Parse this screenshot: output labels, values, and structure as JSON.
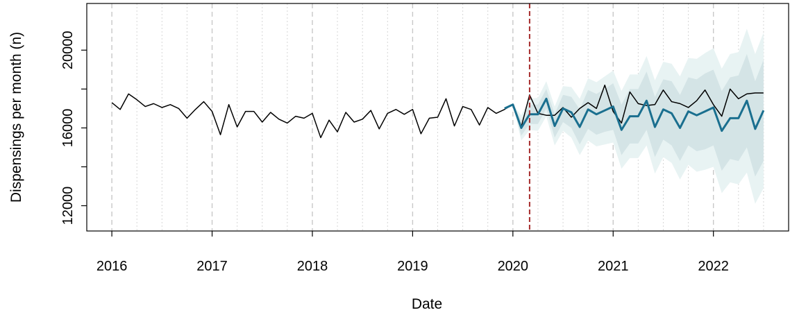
{
  "chart_data": {
    "type": "line",
    "title": "",
    "xlabel": "Date",
    "ylabel": "Dispensings per month (n)",
    "x_ticks": [
      "2016",
      "2017",
      "2018",
      "2019",
      "2020",
      "2021",
      "2022"
    ],
    "y_ticks": [
      "12000",
      "16000",
      "20000"
    ],
    "xlim": [
      2015.75,
      2022.75
    ],
    "ylim": [
      10700,
      22400
    ],
    "grid": true,
    "vline": {
      "x": 2020.1667,
      "color": "#a52a2a"
    },
    "colors": {
      "observed": "#000000",
      "forecast": "#1a6f8f",
      "band_80": "#d4e4e6",
      "band_95": "#e8f3f3"
    },
    "series": [
      {
        "start": 2016.0,
        "step": 0.08333,
        "values": [
          17300,
          16950,
          17750,
          17450,
          17100,
          17250,
          17050,
          17200,
          17000,
          16500,
          16950,
          17350,
          16850,
          15650,
          17200,
          16050,
          16850,
          16850,
          16300,
          16800,
          16450,
          16250,
          16600,
          16500,
          16750,
          15500,
          16400,
          15800,
          16800,
          16300,
          16450,
          16900,
          15950,
          16750,
          16950,
          16700,
          16950,
          15700,
          16500,
          16550,
          17500,
          16100,
          17100,
          16950,
          16150,
          17050,
          16750,
          16950,
          17200,
          16050,
          17700,
          16750,
          16650,
          16650,
          17050,
          16550,
          17000,
          17300,
          17000,
          18200,
          16850,
          16250,
          17850,
          17250,
          17150,
          17200,
          17950,
          17350,
          17250,
          17050,
          17400,
          17950,
          17200,
          16600,
          18000,
          17500,
          17750,
          17800,
          17800
        ]
      },
      {
        "start": 2019.9167,
        "step": 0.08333,
        "values": [
          17000,
          17200,
          16000,
          16700,
          16700,
          17500,
          16100,
          17000,
          16800,
          16050,
          16950,
          16700,
          16900,
          17100,
          15900,
          16600,
          16600,
          17400,
          16050,
          16950,
          16750,
          16000,
          16850,
          16650,
          16850,
          17050,
          15850,
          16500,
          16500,
          17400,
          15950,
          16900
        ]
      }
    ],
    "band_80": {
      "upper": [
        17000,
        17200,
        16400,
        17200,
        17200,
        18000,
        16700,
        17700,
        17600,
        16950,
        17950,
        17750,
        18000,
        18300,
        17200,
        18000,
        18000,
        18900,
        17600,
        18500,
        18400,
        17700,
        18600,
        18500,
        18800,
        19000,
        17900,
        18600,
        18700,
        19800,
        18400,
        19500
      ],
      "lower": [
        17000,
        17200,
        15600,
        16200,
        16200,
        17000,
        15500,
        16300,
        16000,
        15150,
        15950,
        15650,
        15800,
        15900,
        14600,
        15200,
        15200,
        15900,
        14500,
        15400,
        15100,
        14300,
        15100,
        14800,
        14900,
        15100,
        13800,
        14400,
        14300,
        15000,
        13500,
        14300
      ]
    },
    "band_95": {
      "upper": [
        17000,
        17200,
        16650,
        17500,
        17550,
        18400,
        17100,
        18150,
        18100,
        17500,
        18550,
        18350,
        18650,
        18950,
        17900,
        18750,
        18750,
        19700,
        18450,
        19400,
        19300,
        18650,
        19600,
        19550,
        19850,
        20100,
        19050,
        19800,
        19900,
        21100,
        19800,
        20900
      ],
      "lower": [
        17000,
        17200,
        15350,
        15900,
        15850,
        16600,
        15100,
        15850,
        15500,
        14600,
        15350,
        15050,
        15150,
        15250,
        13900,
        14450,
        14450,
        15100,
        13650,
        14500,
        14200,
        13350,
        14100,
        13750,
        13850,
        14000,
        12650,
        13200,
        13100,
        13700,
        12100,
        12900
      ]
    }
  }
}
